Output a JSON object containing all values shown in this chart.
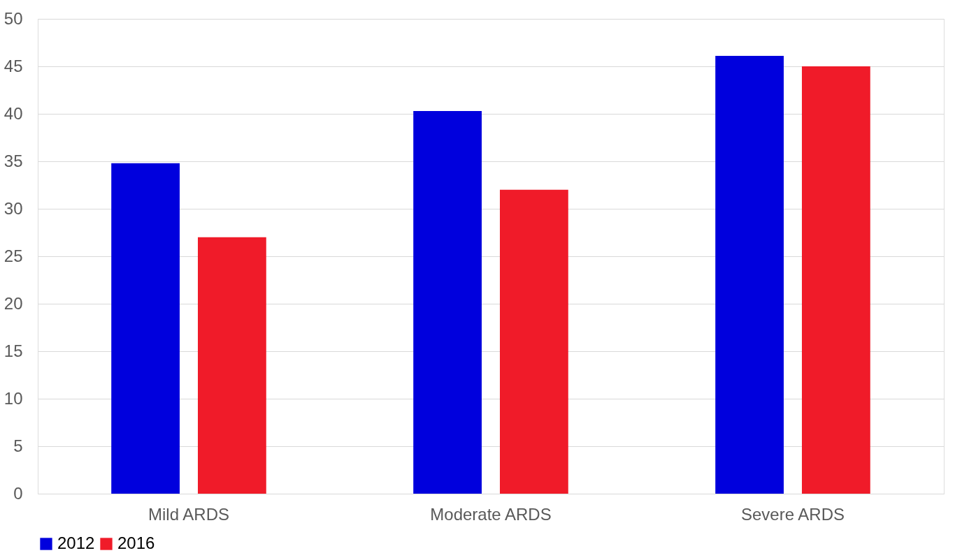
{
  "chart_data": {
    "type": "bar",
    "categories": [
      "Mild ARDS",
      "Moderate ARDS",
      "Severe ARDS"
    ],
    "series": [
      {
        "name": "2012",
        "color": "#0000dd",
        "values": [
          34.8,
          40.3,
          46.1
        ]
      },
      {
        "name": "2016",
        "color": "#f01b29",
        "values": [
          27,
          32,
          45
        ]
      }
    ],
    "ylim": [
      0,
      50
    ],
    "yticks": [
      0,
      5,
      10,
      15,
      20,
      25,
      30,
      35,
      40,
      45,
      50
    ],
    "grid": "y",
    "legend": "bottom"
  }
}
